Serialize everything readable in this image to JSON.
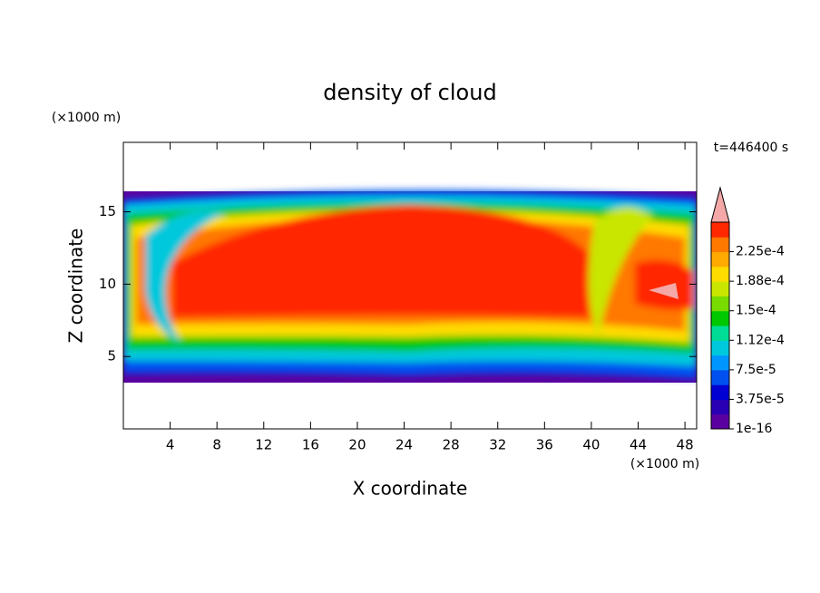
{
  "chart_data": {
    "type": "contour",
    "title": "density of cloud",
    "x_label": "X coordinate",
    "y_label": "Z coordinate",
    "x_unit": "(×1000 m)",
    "y_unit": "(×1000 m)",
    "annotation": "t=446400 s",
    "xlim": [
      0,
      49
    ],
    "ylim": [
      0,
      19.8
    ],
    "xticks": [
      4,
      8,
      12,
      16,
      20,
      24,
      28,
      32,
      36,
      40,
      44,
      48
    ],
    "yticks": [
      5,
      10,
      15
    ],
    "colorbar": {
      "clim": [
        1e-16,
        0.0002625
      ],
      "ticks": [
        {
          "value": 1e-16,
          "label": "1e-16"
        },
        {
          "value": 3.75e-05,
          "label": "3.75e-5"
        },
        {
          "value": 7.5e-05,
          "label": "7.5e-5"
        },
        {
          "value": 0.0001125,
          "label": "1.12e-4"
        },
        {
          "value": 0.00015,
          "label": "1.5e-4"
        },
        {
          "value": 0.0001875,
          "label": "1.88e-4"
        },
        {
          "value": 0.000225,
          "label": "2.25e-4"
        }
      ],
      "colors": [
        "#5a00a0",
        "#2a00b4",
        "#0000d2",
        "#0050f0",
        "#0096ff",
        "#00c8dc",
        "#00dc96",
        "#00c800",
        "#78dc00",
        "#c8e600",
        "#ffdc00",
        "#ffaa00",
        "#ff7800",
        "#ff2800"
      ],
      "extend_color": "#f4a8a8"
    }
  }
}
